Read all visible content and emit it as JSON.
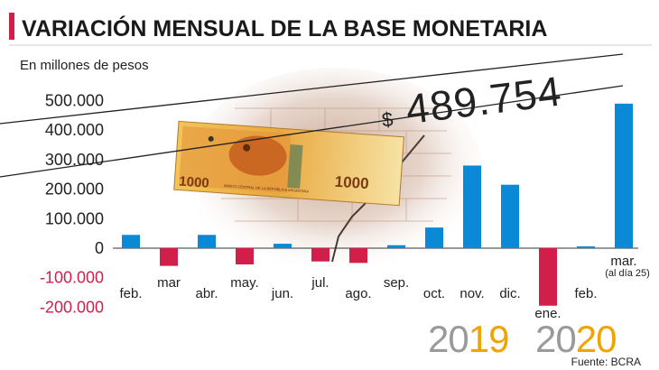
{
  "title": "VARIACIÓN MENSUAL DE LA BASE MONETARIA",
  "unit_label": "En millones de pesos",
  "highlight": {
    "currency": "$",
    "value": "489.754"
  },
  "banknote": {
    "denomination": "1000",
    "issuer": "BANCO CENTRAL DE LA REPÚBLICA ARGENTINA"
  },
  "years": [
    {
      "label": "2019",
      "digits": [
        "20",
        "19"
      ]
    },
    {
      "label": "2020",
      "digits": [
        "20",
        "20"
      ]
    }
  ],
  "source": "Fuente: BCRA",
  "colors": {
    "positive": "#0a8ad6",
    "negative": "#d21f4a",
    "year_gray": "#9a9a9a",
    "year_accent": "#f0a400"
  },
  "chart_data": {
    "type": "bar",
    "title": "VARIACIÓN MENSUAL DE LA BASE MONETARIA",
    "ylabel": "En millones de pesos",
    "ylim": [
      -200000,
      500000
    ],
    "yticks": [
      500000,
      400000,
      300000,
      200000,
      100000,
      0,
      -100000,
      -200000
    ],
    "ytick_labels": [
      "500.000",
      "400.000",
      "300.000",
      "200.000",
      "100.000",
      "0",
      "-100.000",
      "-200.000"
    ],
    "categories": [
      "feb.",
      "mar",
      "abr.",
      "may.",
      "jun.",
      "jul.",
      "ago.",
      "sep.",
      "oct.",
      "nov.",
      "dic.",
      "ene.",
      "feb.",
      "mar."
    ],
    "category_notes": [
      "",
      "",
      "",
      "",
      "",
      "",
      "",
      "",
      "",
      "",
      "",
      "",
      "",
      "(al día 25)"
    ],
    "values": [
      45000,
      -60000,
      45000,
      -55000,
      15000,
      -45000,
      -50000,
      10000,
      70000,
      280000,
      215000,
      -195000,
      5000,
      489754
    ],
    "annotations": [
      "$ 489.754"
    ]
  }
}
